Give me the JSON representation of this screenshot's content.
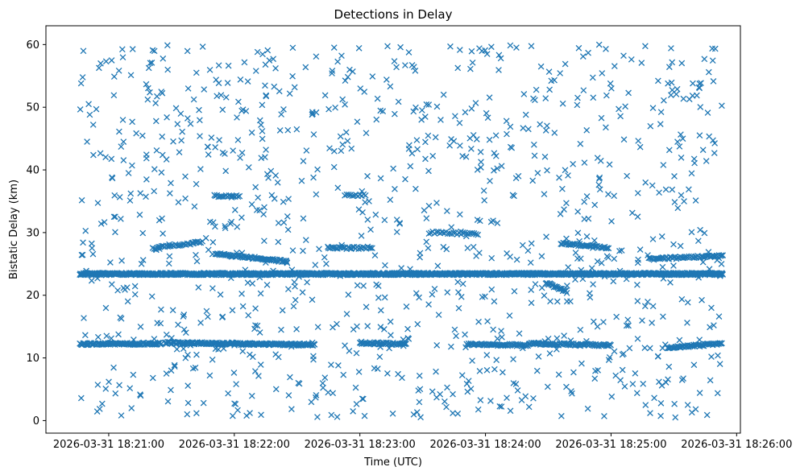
{
  "chart_data": {
    "type": "scatter",
    "title": "Detections in Delay",
    "xlabel": "Time (UTC)",
    "ylabel": "Bistatic Delay (km)",
    "marker": "x",
    "color": "#1f77b4",
    "x_unit": "minutes after 2026-03-31 18:20:00 UTC",
    "xlim": [
      0.5,
      6.03
    ],
    "ylim": [
      -2.0,
      63.0
    ],
    "x_ticks": [
      {
        "value": 1,
        "label": "2026-03-31 18:21:00"
      },
      {
        "value": 2,
        "label": "2026-03-31 18:22:00"
      },
      {
        "value": 3,
        "label": "2026-03-31 18:23:00"
      },
      {
        "value": 4,
        "label": "2026-03-31 18:24:00"
      },
      {
        "value": 5,
        "label": "2026-03-31 18:25:00"
      },
      {
        "value": 6,
        "label": "2026-03-31 18:26:00"
      }
    ],
    "y_ticks": [
      {
        "value": 0,
        "label": "0"
      },
      {
        "value": 10,
        "label": "10"
      },
      {
        "value": 20,
        "label": "20"
      },
      {
        "value": 30,
        "label": "30"
      },
      {
        "value": 40,
        "label": "40"
      },
      {
        "value": 50,
        "label": "50"
      },
      {
        "value": 60,
        "label": "60"
      }
    ],
    "time_range": [
      0.77,
      5.89
    ],
    "dense_tracks": [
      {
        "name": "main-track",
        "x_start": 0.77,
        "x_end": 5.89,
        "y_start": 23.4,
        "y_end": 23.4,
        "step": 0.0042
      },
      {
        "name": "near-track-a",
        "x_start": 0.77,
        "x_end": 1.42,
        "y_start": 12.2,
        "y_end": 12.3,
        "step": 0.0065
      },
      {
        "name": "near-track-b",
        "x_start": 1.45,
        "x_end": 2.64,
        "y_start": 12.4,
        "y_end": 12.1,
        "step": 0.0065
      },
      {
        "name": "near-track-c",
        "x_start": 3.0,
        "x_end": 3.37,
        "y_start": 12.4,
        "y_end": 12.2,
        "step": 0.008
      },
      {
        "name": "near-track-d",
        "x_start": 3.85,
        "x_end": 4.35,
        "y_start": 12.2,
        "y_end": 12.0,
        "step": 0.008
      },
      {
        "name": "near-track-e",
        "x_start": 4.35,
        "x_end": 5.0,
        "y_start": 12.3,
        "y_end": 12.0,
        "step": 0.008
      },
      {
        "name": "near-track-f",
        "x_start": 5.45,
        "x_end": 5.89,
        "y_start": 11.6,
        "y_end": 12.3,
        "step": 0.008
      },
      {
        "name": "mid-track-a",
        "x_start": 1.35,
        "x_end": 1.75,
        "y_start": 27.5,
        "y_end": 28.5,
        "step": 0.012
      },
      {
        "name": "mid-track-b",
        "x_start": 1.85,
        "x_end": 2.42,
        "y_start": 26.6,
        "y_end": 25.4,
        "step": 0.008
      },
      {
        "name": "mid-track-c",
        "x_start": 2.75,
        "x_end": 3.1,
        "y_start": 27.5,
        "y_end": 27.6,
        "step": 0.012
      },
      {
        "name": "mid-track-d",
        "x_start": 3.55,
        "x_end": 3.95,
        "y_start": 30.0,
        "y_end": 29.8,
        "step": 0.015
      },
      {
        "name": "mid-track-e",
        "x_start": 4.48,
        "x_end": 4.65,
        "y_start": 22.0,
        "y_end": 20.5,
        "step": 0.008
      },
      {
        "name": "mid-track-f",
        "x_start": 4.6,
        "x_end": 4.98,
        "y_start": 28.3,
        "y_end": 27.6,
        "step": 0.01
      },
      {
        "name": "mid-track-g",
        "x_start": 5.3,
        "x_end": 5.89,
        "y_start": 25.8,
        "y_end": 26.3,
        "step": 0.01
      },
      {
        "name": "mid-track-h",
        "x_start": 1.85,
        "x_end": 2.05,
        "y_start": 35.8,
        "y_end": 35.8,
        "step": 0.012
      },
      {
        "name": "mid-track-i",
        "x_start": 2.88,
        "x_end": 3.05,
        "y_start": 36.0,
        "y_end": 36.0,
        "step": 0.015
      }
    ],
    "clutter": {
      "count": 1050,
      "y_range": [
        0.5,
        60.0
      ],
      "seed": 20260331
    }
  }
}
